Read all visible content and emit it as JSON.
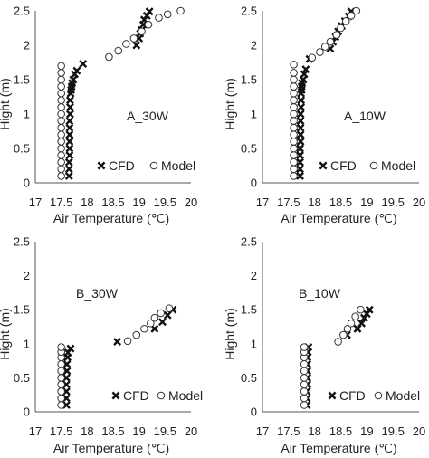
{
  "chart_data": [
    {
      "type": "scatter",
      "annotation": "A_30W",
      "xlabel": "Air Temperature (℃)",
      "ylabel": "Hight (m)",
      "xlim": [
        17,
        20
      ],
      "ylim": [
        0,
        2.5
      ],
      "xticks": [
        "17",
        "17.5",
        "18",
        "18.5",
        "19",
        "19.5",
        "20"
      ],
      "yticks": [
        "0",
        "0.5",
        "1",
        "1.5",
        "2",
        "2.5"
      ],
      "grid": false,
      "legend": "bottom-right",
      "series": [
        {
          "name": "CFD",
          "marker": "x",
          "x": [
            17.65,
            17.65,
            17.65,
            17.66,
            17.66,
            17.66,
            17.66,
            17.66,
            17.66,
            17.67,
            17.67,
            17.67,
            17.68,
            17.69,
            17.7,
            17.71,
            17.73,
            17.76,
            17.8,
            17.92,
            18.95,
            19.0,
            19.02,
            19.05,
            19.08,
            19.1,
            19.15,
            19.2
          ],
          "y": [
            0.1,
            0.2,
            0.3,
            0.4,
            0.5,
            0.6,
            0.7,
            0.8,
            0.9,
            1.0,
            1.1,
            1.2,
            1.3,
            1.35,
            1.4,
            1.45,
            1.5,
            1.58,
            1.63,
            1.73,
            2.0,
            2.1,
            2.17,
            2.22,
            2.3,
            2.37,
            2.43,
            2.49
          ]
        },
        {
          "name": "Model",
          "marker": "o",
          "x": [
            17.5,
            17.5,
            17.5,
            17.5,
            17.5,
            17.5,
            17.5,
            17.5,
            17.5,
            17.5,
            17.5,
            17.5,
            17.5,
            17.5,
            17.5,
            17.5,
            17.5,
            18.42,
            18.6,
            18.75,
            18.9,
            19.05,
            19.18,
            19.38,
            19.55,
            19.8
          ],
          "y": [
            0.1,
            0.2,
            0.3,
            0.4,
            0.5,
            0.6,
            0.7,
            0.8,
            0.9,
            1.0,
            1.1,
            1.2,
            1.3,
            1.4,
            1.5,
            1.6,
            1.7,
            1.83,
            1.92,
            2.02,
            2.1,
            2.2,
            2.3,
            2.4,
            2.45,
            2.5
          ]
        }
      ]
    },
    {
      "type": "scatter",
      "annotation": "A_10W",
      "xlabel": "Air Temperature (℃)",
      "ylabel": "Hight (m)",
      "xlim": [
        17,
        20
      ],
      "ylim": [
        0,
        2.5
      ],
      "xticks": [
        "17",
        "17.5",
        "18",
        "18.5",
        "19",
        "19.5",
        "20"
      ],
      "yticks": [
        "0",
        "0.5",
        "1",
        "1.5",
        "2",
        "2.5"
      ],
      "grid": false,
      "legend": "bottom-right",
      "series": [
        {
          "name": "CFD",
          "marker": "x",
          "x": [
            17.72,
            17.72,
            17.72,
            17.72,
            17.72,
            17.73,
            17.73,
            17.73,
            17.73,
            17.73,
            17.74,
            17.74,
            17.74,
            17.75,
            17.75,
            17.76,
            17.78,
            17.8,
            17.83,
            17.9,
            18.3,
            18.35,
            18.4,
            18.45,
            18.52,
            18.58,
            18.65,
            18.7
          ],
          "y": [
            0.1,
            0.2,
            0.3,
            0.4,
            0.5,
            0.6,
            0.7,
            0.8,
            0.9,
            1.0,
            1.1,
            1.2,
            1.3,
            1.35,
            1.4,
            1.45,
            1.5,
            1.58,
            1.65,
            1.8,
            1.95,
            2.05,
            2.12,
            2.2,
            2.28,
            2.35,
            2.42,
            2.49
          ]
        },
        {
          "name": "Model",
          "marker": "o",
          "x": [
            17.6,
            17.6,
            17.6,
            17.6,
            17.6,
            17.6,
            17.6,
            17.6,
            17.6,
            17.6,
            17.6,
            17.6,
            17.6,
            17.6,
            17.6,
            17.6,
            17.6,
            17.95,
            18.1,
            18.2,
            18.3,
            18.42,
            18.5,
            18.6,
            18.7,
            18.8
          ],
          "y": [
            0.1,
            0.2,
            0.3,
            0.4,
            0.5,
            0.6,
            0.7,
            0.8,
            0.9,
            1.0,
            1.1,
            1.2,
            1.3,
            1.4,
            1.5,
            1.6,
            1.72,
            1.82,
            1.9,
            1.98,
            2.05,
            2.15,
            2.25,
            2.35,
            2.43,
            2.5
          ]
        }
      ]
    },
    {
      "type": "scatter",
      "annotation": "B_30W",
      "xlabel": "Air Temperature (℃)",
      "ylabel": "Hight (m)",
      "xlim": [
        17,
        20
      ],
      "ylim": [
        0,
        2.5
      ],
      "xticks": [
        "17",
        "17.5",
        "18",
        "18.5",
        "19",
        "19.5",
        "20"
      ],
      "yticks": [
        "0",
        "0.5",
        "1",
        "1.5",
        "2",
        "2.5"
      ],
      "grid": false,
      "legend": "bottom-right",
      "series": [
        {
          "name": "CFD",
          "marker": "x",
          "x": [
            17.6,
            17.6,
            17.6,
            17.6,
            17.6,
            17.61,
            17.61,
            17.62,
            17.63,
            17.68,
            18.58,
            19.3,
            19.45,
            19.55,
            19.65
          ],
          "y": [
            0.1,
            0.2,
            0.3,
            0.4,
            0.5,
            0.6,
            0.7,
            0.8,
            0.87,
            0.93,
            1.03,
            1.22,
            1.32,
            1.42,
            1.5
          ]
        },
        {
          "name": "Model",
          "marker": "o",
          "x": [
            17.5,
            17.5,
            17.5,
            17.5,
            17.5,
            17.5,
            17.5,
            17.5,
            17.5,
            17.5,
            18.78,
            18.95,
            19.1,
            19.22,
            19.3,
            19.42,
            19.58
          ],
          "y": [
            0.1,
            0.2,
            0.3,
            0.4,
            0.5,
            0.6,
            0.7,
            0.8,
            0.88,
            0.95,
            1.04,
            1.13,
            1.22,
            1.3,
            1.38,
            1.45,
            1.52
          ]
        }
      ]
    },
    {
      "type": "scatter",
      "annotation": "B_10W",
      "xlabel": "Air Temperature (℃)",
      "ylabel": "Hight (m)",
      "xlim": [
        17,
        20
      ],
      "ylim": [
        0,
        2.5
      ],
      "xticks": [
        "17",
        "17.5",
        "18",
        "18.5",
        "19",
        "19.5",
        "20"
      ],
      "yticks": [
        "0",
        "0.5",
        "1",
        "1.5",
        "2",
        "2.5"
      ],
      "grid": false,
      "legend": "bottom-right",
      "series": [
        {
          "name": "CFD",
          "marker": "x",
          "x": [
            17.85,
            17.85,
            17.85,
            17.86,
            17.86,
            17.86,
            17.86,
            17.86,
            17.87,
            17.88,
            18.62,
            18.82,
            18.9,
            18.95,
            19.0,
            19.05
          ],
          "y": [
            0.1,
            0.2,
            0.3,
            0.4,
            0.5,
            0.6,
            0.7,
            0.8,
            0.88,
            0.95,
            1.13,
            1.22,
            1.3,
            1.38,
            1.44,
            1.5
          ]
        },
        {
          "name": "Model",
          "marker": "o",
          "x": [
            17.8,
            17.8,
            17.8,
            17.8,
            17.8,
            17.8,
            17.8,
            17.8,
            17.8,
            17.8,
            18.45,
            18.55,
            18.63,
            18.7,
            18.78,
            18.88
          ],
          "y": [
            0.1,
            0.2,
            0.3,
            0.4,
            0.5,
            0.6,
            0.7,
            0.8,
            0.88,
            0.95,
            1.03,
            1.13,
            1.22,
            1.3,
            1.4,
            1.5
          ]
        }
      ]
    }
  ]
}
